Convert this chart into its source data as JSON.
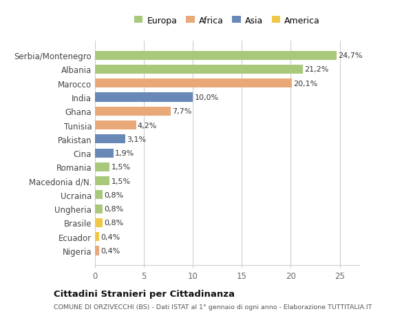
{
  "categories": [
    "Serbia/Montenegro",
    "Albania",
    "Marocco",
    "India",
    "Ghana",
    "Tunisia",
    "Pakistan",
    "Cina",
    "Romania",
    "Macedonia d/N.",
    "Ucraina",
    "Ungheria",
    "Brasile",
    "Ecuador",
    "Nigeria"
  ],
  "values": [
    24.7,
    21.2,
    20.1,
    10.0,
    7.7,
    4.2,
    3.1,
    1.9,
    1.5,
    1.5,
    0.8,
    0.8,
    0.8,
    0.4,
    0.4
  ],
  "labels": [
    "24,7%",
    "21,2%",
    "20,1%",
    "10,0%",
    "7,7%",
    "4,2%",
    "3,1%",
    "1,9%",
    "1,5%",
    "1,5%",
    "0,8%",
    "0,8%",
    "0,8%",
    "0,4%",
    "0,4%"
  ],
  "colors": [
    "#a8c87a",
    "#a8c87a",
    "#e8a878",
    "#6888b8",
    "#e8a878",
    "#e8a878",
    "#6888b8",
    "#6888b8",
    "#a8c87a",
    "#a8c87a",
    "#a8c87a",
    "#a8c87a",
    "#f0c848",
    "#f0c848",
    "#e8a878"
  ],
  "legend_labels": [
    "Europa",
    "Africa",
    "Asia",
    "America"
  ],
  "legend_colors": [
    "#a8c87a",
    "#e8a878",
    "#6888b8",
    "#f0c848"
  ],
  "title": "Cittadini Stranieri per Cittadinanza",
  "subtitle": "COMUNE DI ORZIVECCHI (BS) - Dati ISTAT al 1° gennaio di ogni anno - Elaborazione TUTTITALIA.IT",
  "xlim": [
    0,
    27
  ],
  "xticks": [
    0,
    5,
    10,
    15,
    20,
    25
  ],
  "bg_color": "#ffffff",
  "bar_height": 0.65,
  "label_fontsize": 8,
  "tick_fontsize": 8.5,
  "legend_fontsize": 9
}
